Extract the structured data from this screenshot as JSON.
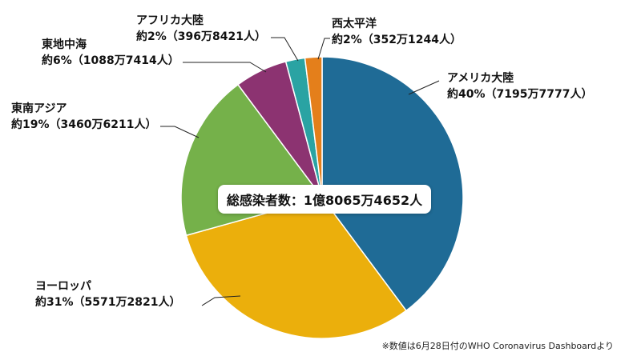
{
  "chart_data": {
    "type": "pie",
    "slices": [
      {
        "name": "アメリカ大陸",
        "label": "約40%（7195万7777人）",
        "value": 71957777,
        "color": "#1f6b96"
      },
      {
        "name": "ヨーロッパ",
        "label": "約31%（5571万2821人）",
        "value": 55712821,
        "color": "#ebaf0c"
      },
      {
        "name": "東南アジア",
        "label": "約19%（3460万6211人）",
        "value": 34606211,
        "color": "#75b14a"
      },
      {
        "name": "東地中海",
        "label": "約6%（1088万7414人）",
        "value": 10887414,
        "color": "#8c3371"
      },
      {
        "name": "アフリカ大陸",
        "label": "約2%（396万8421人）",
        "value": 3968421,
        "color": "#2aa3a3"
      },
      {
        "name": "西太平洋",
        "label": "約2%（352万1244人）",
        "value": 3521244,
        "color": "#e47f1b"
      }
    ]
  },
  "total_label": "総感染者数：1億8065万4652人",
  "source_note": "※数値は6月28日付のWHO Coronavirus Dashboardより"
}
